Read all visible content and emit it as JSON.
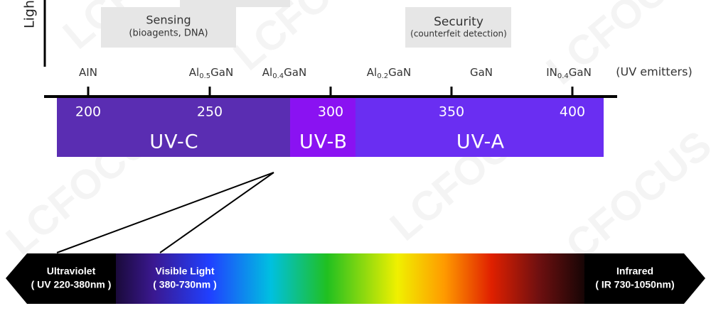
{
  "axis_label": "Ligh",
  "watermark": "LCFOCUS",
  "applications": [
    {
      "title": "Sensing",
      "detail": "(bioagents, DNA)"
    },
    {
      "title": "Security",
      "detail": "(counterfeit detection)"
    }
  ],
  "emitters": [
    {
      "base": "AIN"
    },
    {
      "base": "Al",
      "sub": "0.5",
      "rest": "GaN"
    },
    {
      "base": "Al",
      "sub": "0.4",
      "rest": "GaN"
    },
    {
      "base": "Al",
      "sub": "0.2",
      "rest": "GaN"
    },
    {
      "base": "GaN"
    },
    {
      "base": "IN",
      "sub": "0.4",
      "rest": "GaN"
    }
  ],
  "emitters_caption": "(UV emitters)",
  "wavelength_ticks": [
    "200",
    "250",
    "300",
    "350",
    "400"
  ],
  "bands": [
    "UV-C",
    "UV-B",
    "UV-A"
  ],
  "spectrum": [
    {
      "name": "Ultraviolet",
      "range": "( UV 220-380nm )"
    },
    {
      "name": "Visible Light",
      "range": "( 380-730nm )"
    },
    {
      "name": "Infrared",
      "range": "( IR 730-1050nm)"
    }
  ]
}
